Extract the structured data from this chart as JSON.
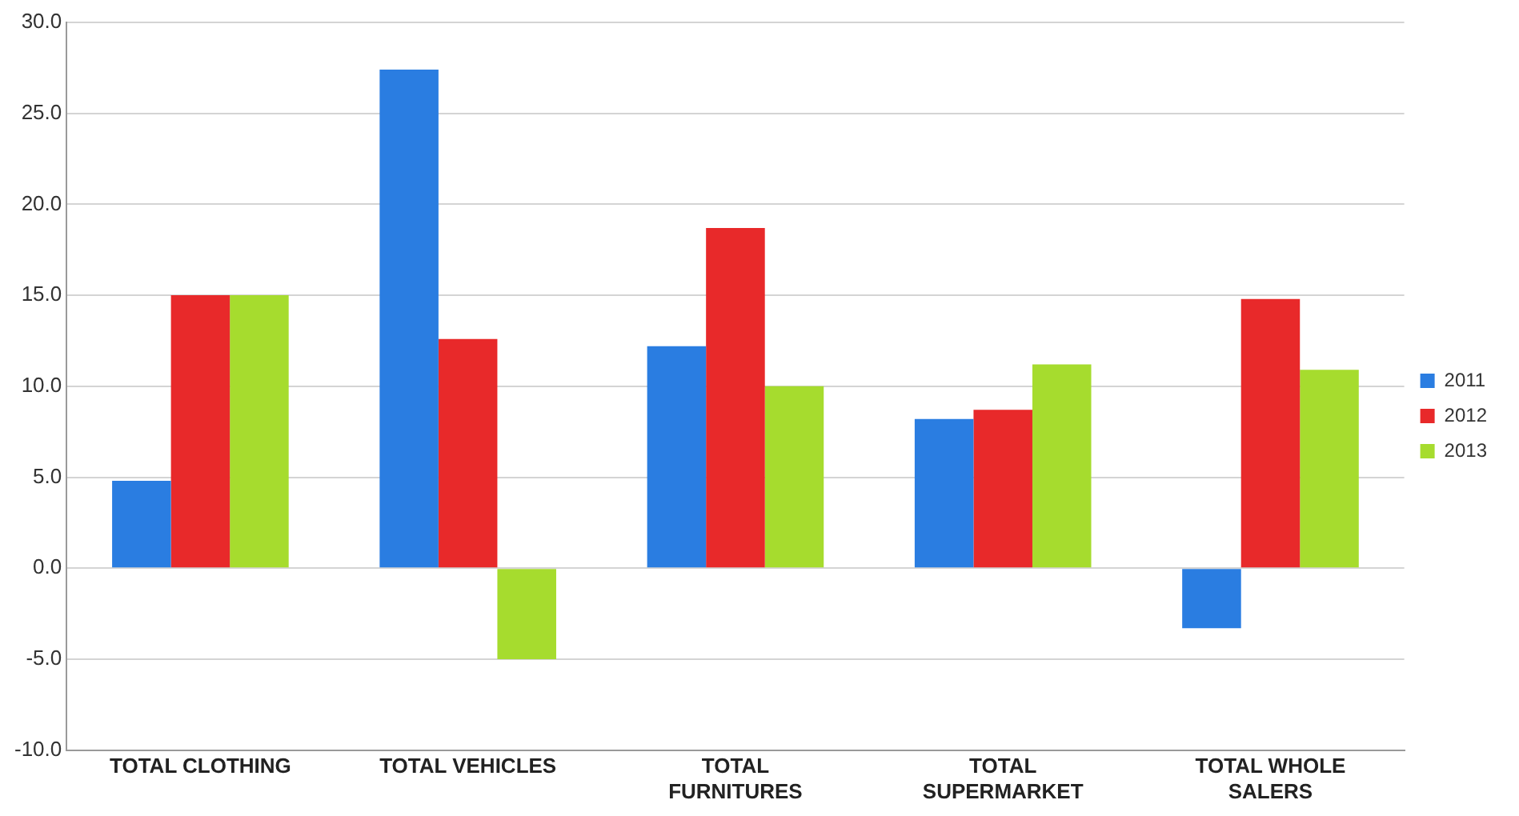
{
  "chart_data": {
    "type": "bar",
    "categories": [
      "TOTAL CLOTHING",
      "TOTAL VEHICLES",
      "TOTAL FURNITURES",
      "TOTAL SUPERMARKET",
      "TOTAL WHOLE SALERS"
    ],
    "series": [
      {
        "name": "2011",
        "color": "#2a7de1",
        "values": [
          4.8,
          27.4,
          12.2,
          8.2,
          -3.3
        ]
      },
      {
        "name": "2012",
        "color": "#e8292a",
        "values": [
          15.0,
          12.6,
          18.7,
          8.7,
          14.8
        ]
      },
      {
        "name": "2013",
        "color": "#a6dc2e",
        "values": [
          15.0,
          -5.0,
          10.0,
          11.2,
          10.9
        ]
      }
    ],
    "ylim": [
      -10,
      30
    ],
    "yticks": [
      {
        "value": -10,
        "label": "-10.0"
      },
      {
        "value": -5,
        "label": "-5.0"
      },
      {
        "value": 0,
        "label": "0.0"
      },
      {
        "value": 5,
        "label": "5.0"
      },
      {
        "value": 10,
        "label": "10.0"
      },
      {
        "value": 15,
        "label": "15.0"
      },
      {
        "value": 20,
        "label": "20.0"
      },
      {
        "value": 25,
        "label": "25.0"
      },
      {
        "value": 30,
        "label": "30.0"
      }
    ],
    "grid": "y",
    "legend": "right"
  }
}
